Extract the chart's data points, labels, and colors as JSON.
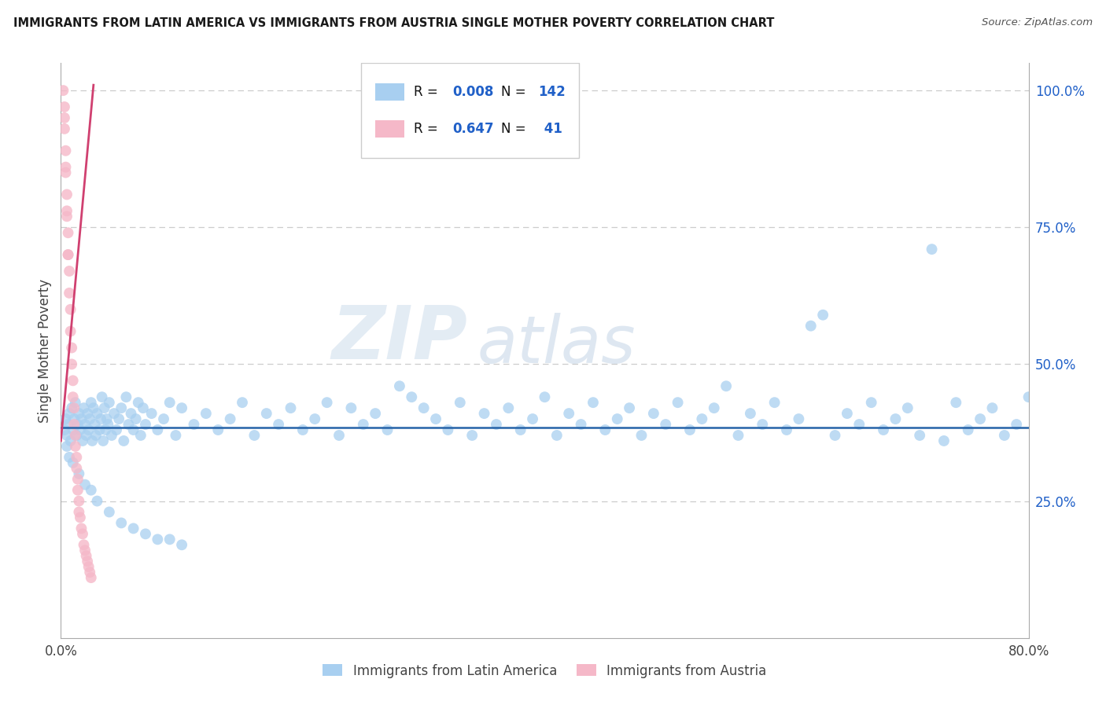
{
  "title": "IMMIGRANTS FROM LATIN AMERICA VS IMMIGRANTS FROM AUSTRIA SINGLE MOTHER POVERTY CORRELATION CHART",
  "source_text": "Source: ZipAtlas.com",
  "ylabel": "Single Mother Poverty",
  "watermark_zip": "ZIP",
  "watermark_atlas": "atlas",
  "legend_label1": "Immigrants from Latin America",
  "legend_label2": "Immigrants from Austria",
  "blue_color": "#a8cff0",
  "pink_color": "#f5b8c8",
  "blue_line_color": "#2563a8",
  "pink_line_color": "#d04070",
  "r_n_color": "#2060c8",
  "label_color": "#444444",
  "background_color": "#ffffff",
  "grid_color": "#cccccc",
  "xlim": [
    0.0,
    0.8
  ],
  "ylim": [
    0.0,
    1.05
  ],
  "blue_x": [
    0.003,
    0.004,
    0.005,
    0.006,
    0.007,
    0.008,
    0.009,
    0.01,
    0.011,
    0.012,
    0.013,
    0.014,
    0.015,
    0.016,
    0.017,
    0.018,
    0.019,
    0.02,
    0.021,
    0.022,
    0.023,
    0.024,
    0.025,
    0.026,
    0.027,
    0.028,
    0.029,
    0.03,
    0.032,
    0.033,
    0.034,
    0.035,
    0.036,
    0.037,
    0.038,
    0.039,
    0.04,
    0.042,
    0.044,
    0.046,
    0.048,
    0.05,
    0.052,
    0.054,
    0.056,
    0.058,
    0.06,
    0.062,
    0.064,
    0.066,
    0.068,
    0.07,
    0.075,
    0.08,
    0.085,
    0.09,
    0.095,
    0.1,
    0.11,
    0.12,
    0.13,
    0.14,
    0.15,
    0.16,
    0.17,
    0.18,
    0.19,
    0.2,
    0.21,
    0.22,
    0.23,
    0.24,
    0.25,
    0.26,
    0.27,
    0.28,
    0.29,
    0.3,
    0.31,
    0.32,
    0.33,
    0.34,
    0.35,
    0.36,
    0.37,
    0.38,
    0.39,
    0.4,
    0.41,
    0.42,
    0.43,
    0.44,
    0.45,
    0.46,
    0.47,
    0.48,
    0.49,
    0.5,
    0.51,
    0.52,
    0.53,
    0.54,
    0.55,
    0.56,
    0.57,
    0.58,
    0.59,
    0.6,
    0.61,
    0.62,
    0.63,
    0.64,
    0.65,
    0.66,
    0.67,
    0.68,
    0.69,
    0.7,
    0.71,
    0.72,
    0.73,
    0.74,
    0.75,
    0.76,
    0.77,
    0.78,
    0.79,
    0.8,
    0.005,
    0.007,
    0.01,
    0.015,
    0.02,
    0.025,
    0.03,
    0.04,
    0.05,
    0.06,
    0.07,
    0.08,
    0.09,
    0.1
  ],
  "blue_y": [
    0.38,
    0.4,
    0.37,
    0.39,
    0.41,
    0.36,
    0.42,
    0.38,
    0.4,
    0.43,
    0.37,
    0.39,
    0.41,
    0.38,
    0.4,
    0.36,
    0.42,
    0.39,
    0.37,
    0.41,
    0.38,
    0.4,
    0.43,
    0.36,
    0.42,
    0.39,
    0.37,
    0.41,
    0.38,
    0.4,
    0.44,
    0.36,
    0.42,
    0.38,
    0.4,
    0.39,
    0.43,
    0.37,
    0.41,
    0.38,
    0.4,
    0.42,
    0.36,
    0.44,
    0.39,
    0.41,
    0.38,
    0.4,
    0.43,
    0.37,
    0.42,
    0.39,
    0.41,
    0.38,
    0.4,
    0.43,
    0.37,
    0.42,
    0.39,
    0.41,
    0.38,
    0.4,
    0.43,
    0.37,
    0.41,
    0.39,
    0.42,
    0.38,
    0.4,
    0.43,
    0.37,
    0.42,
    0.39,
    0.41,
    0.38,
    0.46,
    0.44,
    0.42,
    0.4,
    0.38,
    0.43,
    0.37,
    0.41,
    0.39,
    0.42,
    0.38,
    0.4,
    0.44,
    0.37,
    0.41,
    0.39,
    0.43,
    0.38,
    0.4,
    0.42,
    0.37,
    0.41,
    0.39,
    0.43,
    0.38,
    0.4,
    0.42,
    0.46,
    0.37,
    0.41,
    0.39,
    0.43,
    0.38,
    0.4,
    0.57,
    0.59,
    0.37,
    0.41,
    0.39,
    0.43,
    0.38,
    0.4,
    0.42,
    0.37,
    0.71,
    0.36,
    0.43,
    0.38,
    0.4,
    0.42,
    0.37,
    0.39,
    0.44,
    0.35,
    0.33,
    0.32,
    0.3,
    0.28,
    0.27,
    0.25,
    0.23,
    0.21,
    0.2,
    0.19,
    0.18,
    0.18,
    0.17
  ],
  "pink_x": [
    0.002,
    0.003,
    0.003,
    0.004,
    0.004,
    0.005,
    0.005,
    0.006,
    0.006,
    0.007,
    0.007,
    0.008,
    0.008,
    0.009,
    0.009,
    0.01,
    0.01,
    0.011,
    0.011,
    0.012,
    0.012,
    0.013,
    0.013,
    0.014,
    0.014,
    0.015,
    0.015,
    0.016,
    0.017,
    0.018,
    0.019,
    0.02,
    0.021,
    0.022,
    0.023,
    0.024,
    0.025,
    0.003,
    0.004,
    0.005,
    0.006
  ],
  "pink_y": [
    1.0,
    0.97,
    0.93,
    0.89,
    0.85,
    0.81,
    0.77,
    0.74,
    0.7,
    0.67,
    0.63,
    0.6,
    0.56,
    0.53,
    0.5,
    0.47,
    0.44,
    0.42,
    0.39,
    0.37,
    0.35,
    0.33,
    0.31,
    0.29,
    0.27,
    0.25,
    0.23,
    0.22,
    0.2,
    0.19,
    0.17,
    0.16,
    0.15,
    0.14,
    0.13,
    0.12,
    0.11,
    0.95,
    0.86,
    0.78,
    0.7
  ],
  "blue_line_x": [
    0.0,
    0.8
  ],
  "blue_line_y": [
    0.385,
    0.385
  ],
  "pink_line_x": [
    0.0,
    0.027
  ],
  "pink_line_y": [
    0.36,
    1.01
  ]
}
